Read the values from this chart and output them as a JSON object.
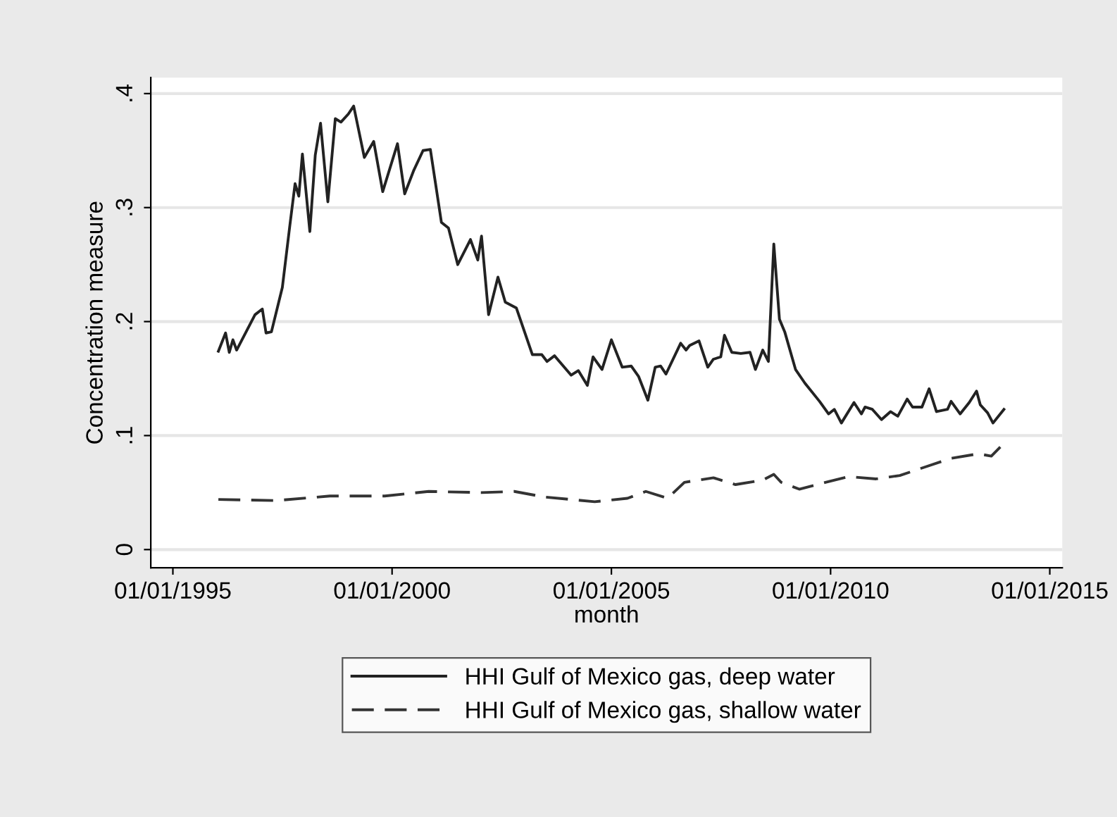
{
  "chart_data": {
    "type": "line",
    "xlabel": "month",
    "ylabel": "Concentration measure",
    "legend": "bottom",
    "grid": "y",
    "marker": "none",
    "xlim": [
      "1994-07-01",
      "2015-04-15"
    ],
    "ylim": [
      -0.016,
      0.414
    ],
    "xticks": [
      {
        "value": "1995-01-01",
        "label": "01/01/1995"
      },
      {
        "value": "2000-01-01",
        "label": "01/01/2000"
      },
      {
        "value": "2005-01-01",
        "label": "01/01/2005"
      },
      {
        "value": "2010-01-01",
        "label": "01/01/2010"
      },
      {
        "value": "2015-01-01",
        "label": "01/01/2015"
      }
    ],
    "yticks": [
      {
        "value": 0,
        "label": "0"
      },
      {
        "value": 0.1,
        "label": ".1"
      },
      {
        "value": 0.2,
        "label": ".2"
      },
      {
        "value": 0.3,
        "label": ".3"
      },
      {
        "value": 0.4,
        "label": ".4"
      }
    ],
    "series": [
      {
        "name": "HHI Gulf of Mexico gas, deep water",
        "color": "#222222",
        "line_style": "solid",
        "x": [
          "1996-01-15",
          "1996-03-15",
          "1996-04-15",
          "1996-05-15",
          "1996-06-15",
          "1996-11-15",
          "1997-01-15",
          "1997-02-15",
          "1997-04-01",
          "1997-07-01",
          "1997-09-01",
          "1997-10-15",
          "1997-11-15",
          "1997-12-15",
          "1998-02-15",
          "1998-04-01",
          "1998-05-15",
          "1998-07-15",
          "1998-09-15",
          "1998-11-01",
          "1999-01-01",
          "1999-02-15",
          "1999-05-15",
          "1999-08-01",
          "1999-10-15",
          "2000-02-15",
          "2000-04-15",
          "2000-07-01",
          "2000-09-15",
          "2000-11-15",
          "2001-02-15",
          "2001-04-15",
          "2001-07-01",
          "2001-10-15",
          "2001-12-15",
          "2002-01-15",
          "2002-03-15",
          "2002-06-01",
          "2002-08-01",
          "2002-11-01",
          "2003-03-15",
          "2003-06-01",
          "2003-07-15",
          "2003-09-15",
          "2004-02-01",
          "2004-04-01",
          "2004-06-15",
          "2004-08-01",
          "2004-10-15",
          "2005-01-01",
          "2005-04-01",
          "2005-06-15",
          "2005-08-15",
          "2005-11-01",
          "2006-01-01",
          "2006-02-15",
          "2006-04-01",
          "2006-08-01",
          "2006-09-15",
          "2006-10-15",
          "2007-01-01",
          "2007-03-15",
          "2007-05-01",
          "2007-07-01",
          "2007-08-01",
          "2007-10-01",
          "2007-12-15",
          "2008-03-01",
          "2008-04-15",
          "2008-06-15",
          "2008-08-01",
          "2008-09-15",
          "2008-11-01",
          "2008-12-15",
          "2009-03-15",
          "2009-06-01",
          "2009-10-01",
          "2009-12-15",
          "2010-02-01",
          "2010-04-01",
          "2010-07-15",
          "2010-09-15",
          "2010-10-15",
          "2010-12-15",
          "2011-03-01",
          "2011-05-15",
          "2011-07-15",
          "2011-10-01",
          "2011-11-15",
          "2012-02-01",
          "2012-04-01",
          "2012-06-01",
          "2012-09-01",
          "2012-10-01",
          "2012-12-15",
          "2013-03-01",
          "2013-05-01",
          "2013-06-01",
          "2013-08-01",
          "2013-09-15",
          "2013-12-15"
        ],
        "values": [
          0.174,
          0.19,
          0.173,
          0.184,
          0.175,
          0.206,
          0.211,
          0.19,
          0.191,
          0.23,
          0.284,
          0.321,
          0.31,
          0.347,
          0.279,
          0.346,
          0.374,
          0.305,
          0.378,
          0.375,
          0.382,
          0.389,
          0.344,
          0.358,
          0.314,
          0.356,
          0.312,
          0.333,
          0.35,
          0.351,
          0.287,
          0.282,
          0.25,
          0.272,
          0.254,
          0.275,
          0.206,
          0.239,
          0.217,
          0.212,
          0.171,
          0.171,
          0.165,
          0.17,
          0.153,
          0.157,
          0.144,
          0.169,
          0.158,
          0.184,
          0.16,
          0.161,
          0.152,
          0.131,
          0.16,
          0.161,
          0.154,
          0.181,
          0.175,
          0.179,
          0.183,
          0.16,
          0.167,
          0.169,
          0.188,
          0.173,
          0.172,
          0.173,
          0.158,
          0.175,
          0.165,
          0.268,
          0.202,
          0.191,
          0.158,
          0.146,
          0.13,
          0.119,
          0.123,
          0.111,
          0.129,
          0.119,
          0.125,
          0.123,
          0.114,
          0.121,
          0.117,
          0.132,
          0.125,
          0.125,
          0.141,
          0.121,
          0.123,
          0.13,
          0.119,
          0.129,
          0.139,
          0.127,
          0.12,
          0.111,
          0.123
        ]
      },
      {
        "name": "HHI Gulf of Mexico gas, shallow water",
        "color": "#333333",
        "line_style": "dashed",
        "x": [
          "1996-01-15",
          "1997-05-15",
          "1998-08-01",
          "1999-11-01",
          "2000-11-01",
          "2002-01-15",
          "2002-10-15",
          "2003-07-01",
          "2004-08-15",
          "2005-05-15",
          "2005-10-15",
          "2006-04-15",
          "2006-09-01",
          "2007-05-01",
          "2007-11-01",
          "2008-06-15",
          "2008-09-15",
          "2008-11-15",
          "2009-04-15",
          "2009-10-15",
          "2010-06-01",
          "2011-01-15",
          "2011-08-01",
          "2012-02-15",
          "2012-10-01",
          "2013-05-15",
          "2013-09-01",
          "2013-11-15"
        ],
        "values": [
          0.044,
          0.043,
          0.047,
          0.047,
          0.051,
          0.05,
          0.051,
          0.046,
          0.042,
          0.045,
          0.051,
          0.045,
          0.059,
          0.063,
          0.057,
          0.061,
          0.066,
          0.059,
          0.053,
          0.058,
          0.064,
          0.062,
          0.065,
          0.072,
          0.08,
          0.084,
          0.082,
          0.09
        ]
      }
    ]
  }
}
